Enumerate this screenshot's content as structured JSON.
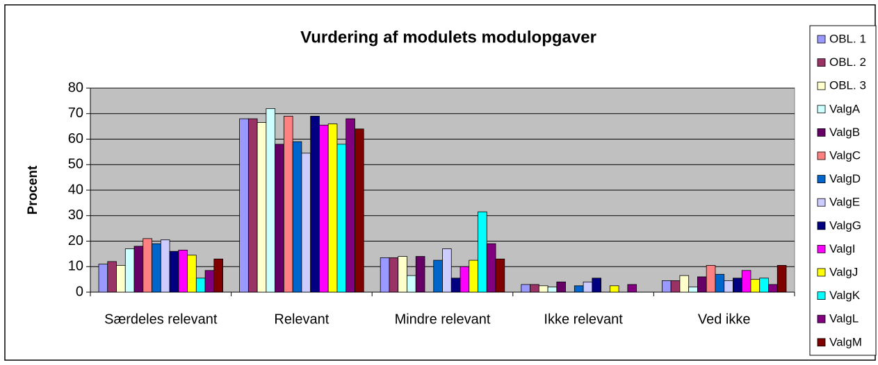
{
  "chart_data": {
    "type": "bar",
    "title": "Vurdering af modulets modulopgaver",
    "y_label": "Procent",
    "categories": [
      "Særdeles relevant",
      "Relevant",
      "Mindre relevant",
      "Ikke relevant",
      "Ved ikke"
    ],
    "ylim": [
      0,
      80
    ],
    "yticks": [
      0,
      10,
      20,
      30,
      40,
      50,
      60,
      70,
      80
    ],
    "grid": true,
    "legend": "right",
    "series": [
      {
        "name": "OBL. 1",
        "color": "#9999FF",
        "values": [
          11,
          68,
          13.5,
          3,
          4.5
        ]
      },
      {
        "name": "OBL. 2",
        "color": "#993366",
        "values": [
          12,
          68,
          13.5,
          3,
          4.5
        ]
      },
      {
        "name": "OBL. 3",
        "color": "#FFFFCC",
        "values": [
          10.5,
          66.5,
          14,
          2.5,
          6.5
        ]
      },
      {
        "name": "ValgA",
        "color": "#CCFFFF",
        "values": [
          17,
          72,
          6.5,
          2,
          2
        ]
      },
      {
        "name": "ValgB",
        "color": "#660066",
        "values": [
          18,
          58,
          14,
          4,
          6
        ]
      },
      {
        "name": "ValgC",
        "color": "#FF8080",
        "values": [
          21,
          69,
          0,
          0,
          10.5
        ]
      },
      {
        "name": "ValgD",
        "color": "#0066CC",
        "values": [
          19,
          59,
          12.5,
          2.5,
          7
        ]
      },
      {
        "name": "ValgE",
        "color": "#CCCCFF",
        "values": [
          20.5,
          54.5,
          17,
          4,
          4.5
        ]
      },
      {
        "name": "ValgG",
        "color": "#000080",
        "values": [
          16,
          69,
          5.5,
          5.5,
          5.5
        ]
      },
      {
        "name": "ValgI",
        "color": "#FF00FF",
        "values": [
          16.5,
          65.5,
          10,
          0,
          8.5
        ]
      },
      {
        "name": "ValgJ",
        "color": "#FFFF00",
        "values": [
          14.5,
          66,
          12.5,
          2.5,
          5
        ]
      },
      {
        "name": "ValgK",
        "color": "#00FFFF",
        "values": [
          5.5,
          58,
          31.5,
          0,
          5.5
        ]
      },
      {
        "name": "ValgL",
        "color": "#800080",
        "values": [
          8.5,
          68,
          19,
          3,
          3
        ]
      },
      {
        "name": "ValgM",
        "color": "#800000",
        "values": [
          13,
          64,
          13,
          0,
          10.5
        ]
      }
    ]
  }
}
